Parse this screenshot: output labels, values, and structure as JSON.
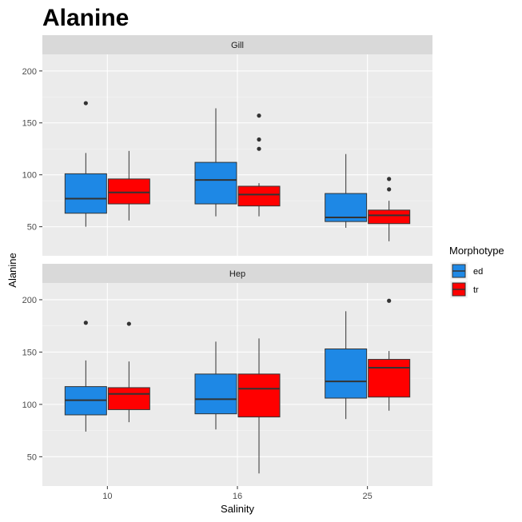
{
  "chart_data": {
    "type": "boxplot",
    "title": "Alanine",
    "xlabel": "Salinity",
    "ylabel": "Alanine",
    "categories": [
      "10",
      "16",
      "25"
    ],
    "y_ticks": [
      50,
      100,
      150,
      200
    ],
    "ylim": [
      22,
      216
    ],
    "legend": {
      "title": "Morphotype",
      "position": "right",
      "entries": [
        {
          "key": "ed",
          "label": "ed",
          "color": "#1E88E5"
        },
        {
          "key": "tr",
          "label": "tr",
          "color": "#FF0000"
        }
      ]
    },
    "panels": [
      {
        "name": "Gill",
        "boxes": [
          {
            "category": "10",
            "group": "ed",
            "min": 50,
            "q1": 63,
            "median": 77,
            "q3": 101,
            "max": 121,
            "outliers": [
              169
            ]
          },
          {
            "category": "10",
            "group": "tr",
            "min": 56,
            "q1": 72,
            "median": 83,
            "q3": 96,
            "max": 123,
            "outliers": []
          },
          {
            "category": "16",
            "group": "ed",
            "min": 60,
            "q1": 72,
            "median": 95,
            "q3": 112,
            "max": 164,
            "outliers": []
          },
          {
            "category": "16",
            "group": "tr",
            "min": 60,
            "q1": 70,
            "median": 81,
            "q3": 89,
            "max": 92,
            "outliers": [
              125,
              134,
              157
            ]
          },
          {
            "category": "25",
            "group": "ed",
            "min": 49,
            "q1": 55,
            "median": 59,
            "q3": 82,
            "max": 120,
            "outliers": []
          },
          {
            "category": "25",
            "group": "tr",
            "min": 36,
            "q1": 53,
            "median": 61,
            "q3": 66,
            "max": 75,
            "outliers": [
              86,
              96
            ]
          }
        ]
      },
      {
        "name": "Hep",
        "boxes": [
          {
            "category": "10",
            "group": "ed",
            "min": 74,
            "q1": 90,
            "median": 104,
            "q3": 117,
            "max": 142,
            "outliers": [
              178
            ]
          },
          {
            "category": "10",
            "group": "tr",
            "min": 83,
            "q1": 95,
            "median": 110,
            "q3": 116,
            "max": 141,
            "outliers": [
              177
            ]
          },
          {
            "category": "16",
            "group": "ed",
            "min": 76,
            "q1": 91,
            "median": 105,
            "q3": 129,
            "max": 160,
            "outliers": []
          },
          {
            "category": "16",
            "group": "tr",
            "min": 34,
            "q1": 88,
            "median": 115,
            "q3": 129,
            "max": 163,
            "outliers": []
          },
          {
            "category": "25",
            "group": "ed",
            "min": 86,
            "q1": 106,
            "median": 122,
            "q3": 153,
            "max": 189,
            "outliers": []
          },
          {
            "category": "25",
            "group": "tr",
            "min": 94,
            "q1": 107,
            "median": 135,
            "q3": 143,
            "max": 151,
            "outliers": [
              199
            ]
          }
        ]
      }
    ]
  }
}
